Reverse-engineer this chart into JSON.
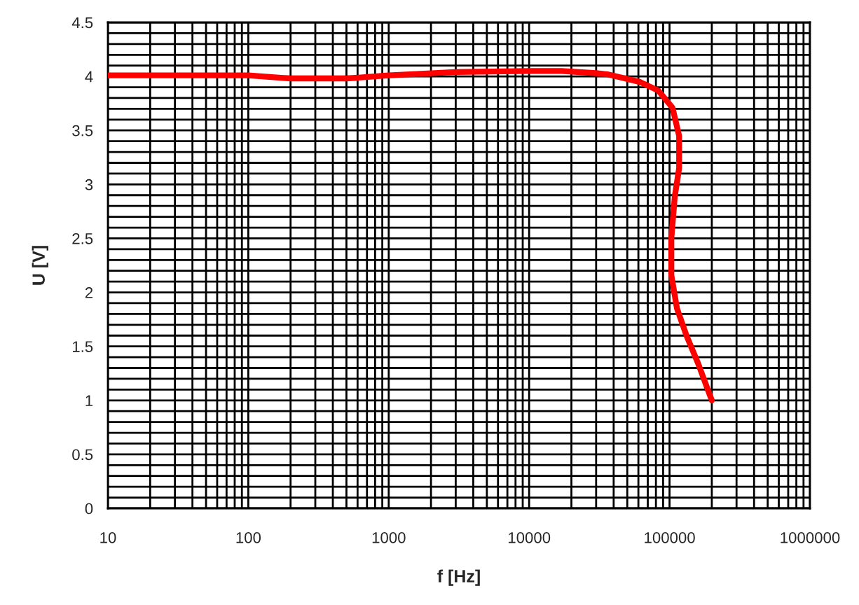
{
  "chart_data": {
    "type": "line",
    "xlabel": "f [Hz]",
    "ylabel": "U [V]",
    "log": "x",
    "grid": true,
    "marker": "none",
    "line_style": "solid",
    "xlim": [
      10,
      1000000
    ],
    "ylim": [
      0,
      4.5
    ],
    "xticks": [
      {
        "value": 10,
        "label": "10"
      },
      {
        "value": 100,
        "label": "100"
      },
      {
        "value": 1000,
        "label": "1000"
      },
      {
        "value": 10000,
        "label": "10000"
      },
      {
        "value": 100000,
        "label": "100000"
      },
      {
        "value": 1000000,
        "label": "1000000"
      }
    ],
    "yticks": [
      0,
      0.5,
      1,
      1.5,
      2,
      2.5,
      3,
      3.5,
      4,
      4.5
    ],
    "series": [
      {
        "color": "#ff0000",
        "x": [
          10,
          100,
          200,
          500,
          1000,
          3000,
          10000,
          17000,
          30000,
          36000,
          61000,
          83000,
          105000,
          117000,
          117000,
          109000,
          103000,
          103000,
          113000,
          132000,
          160000,
          200000
        ],
        "values": [
          4.01,
          4.01,
          3.98,
          3.98,
          4.01,
          4.04,
          4.05,
          4.05,
          4.03,
          4.02,
          3.95,
          3.87,
          3.71,
          3.45,
          3.15,
          2.89,
          2.5,
          2.16,
          1.85,
          1.6,
          1.34,
          1.0
        ]
      }
    ]
  }
}
